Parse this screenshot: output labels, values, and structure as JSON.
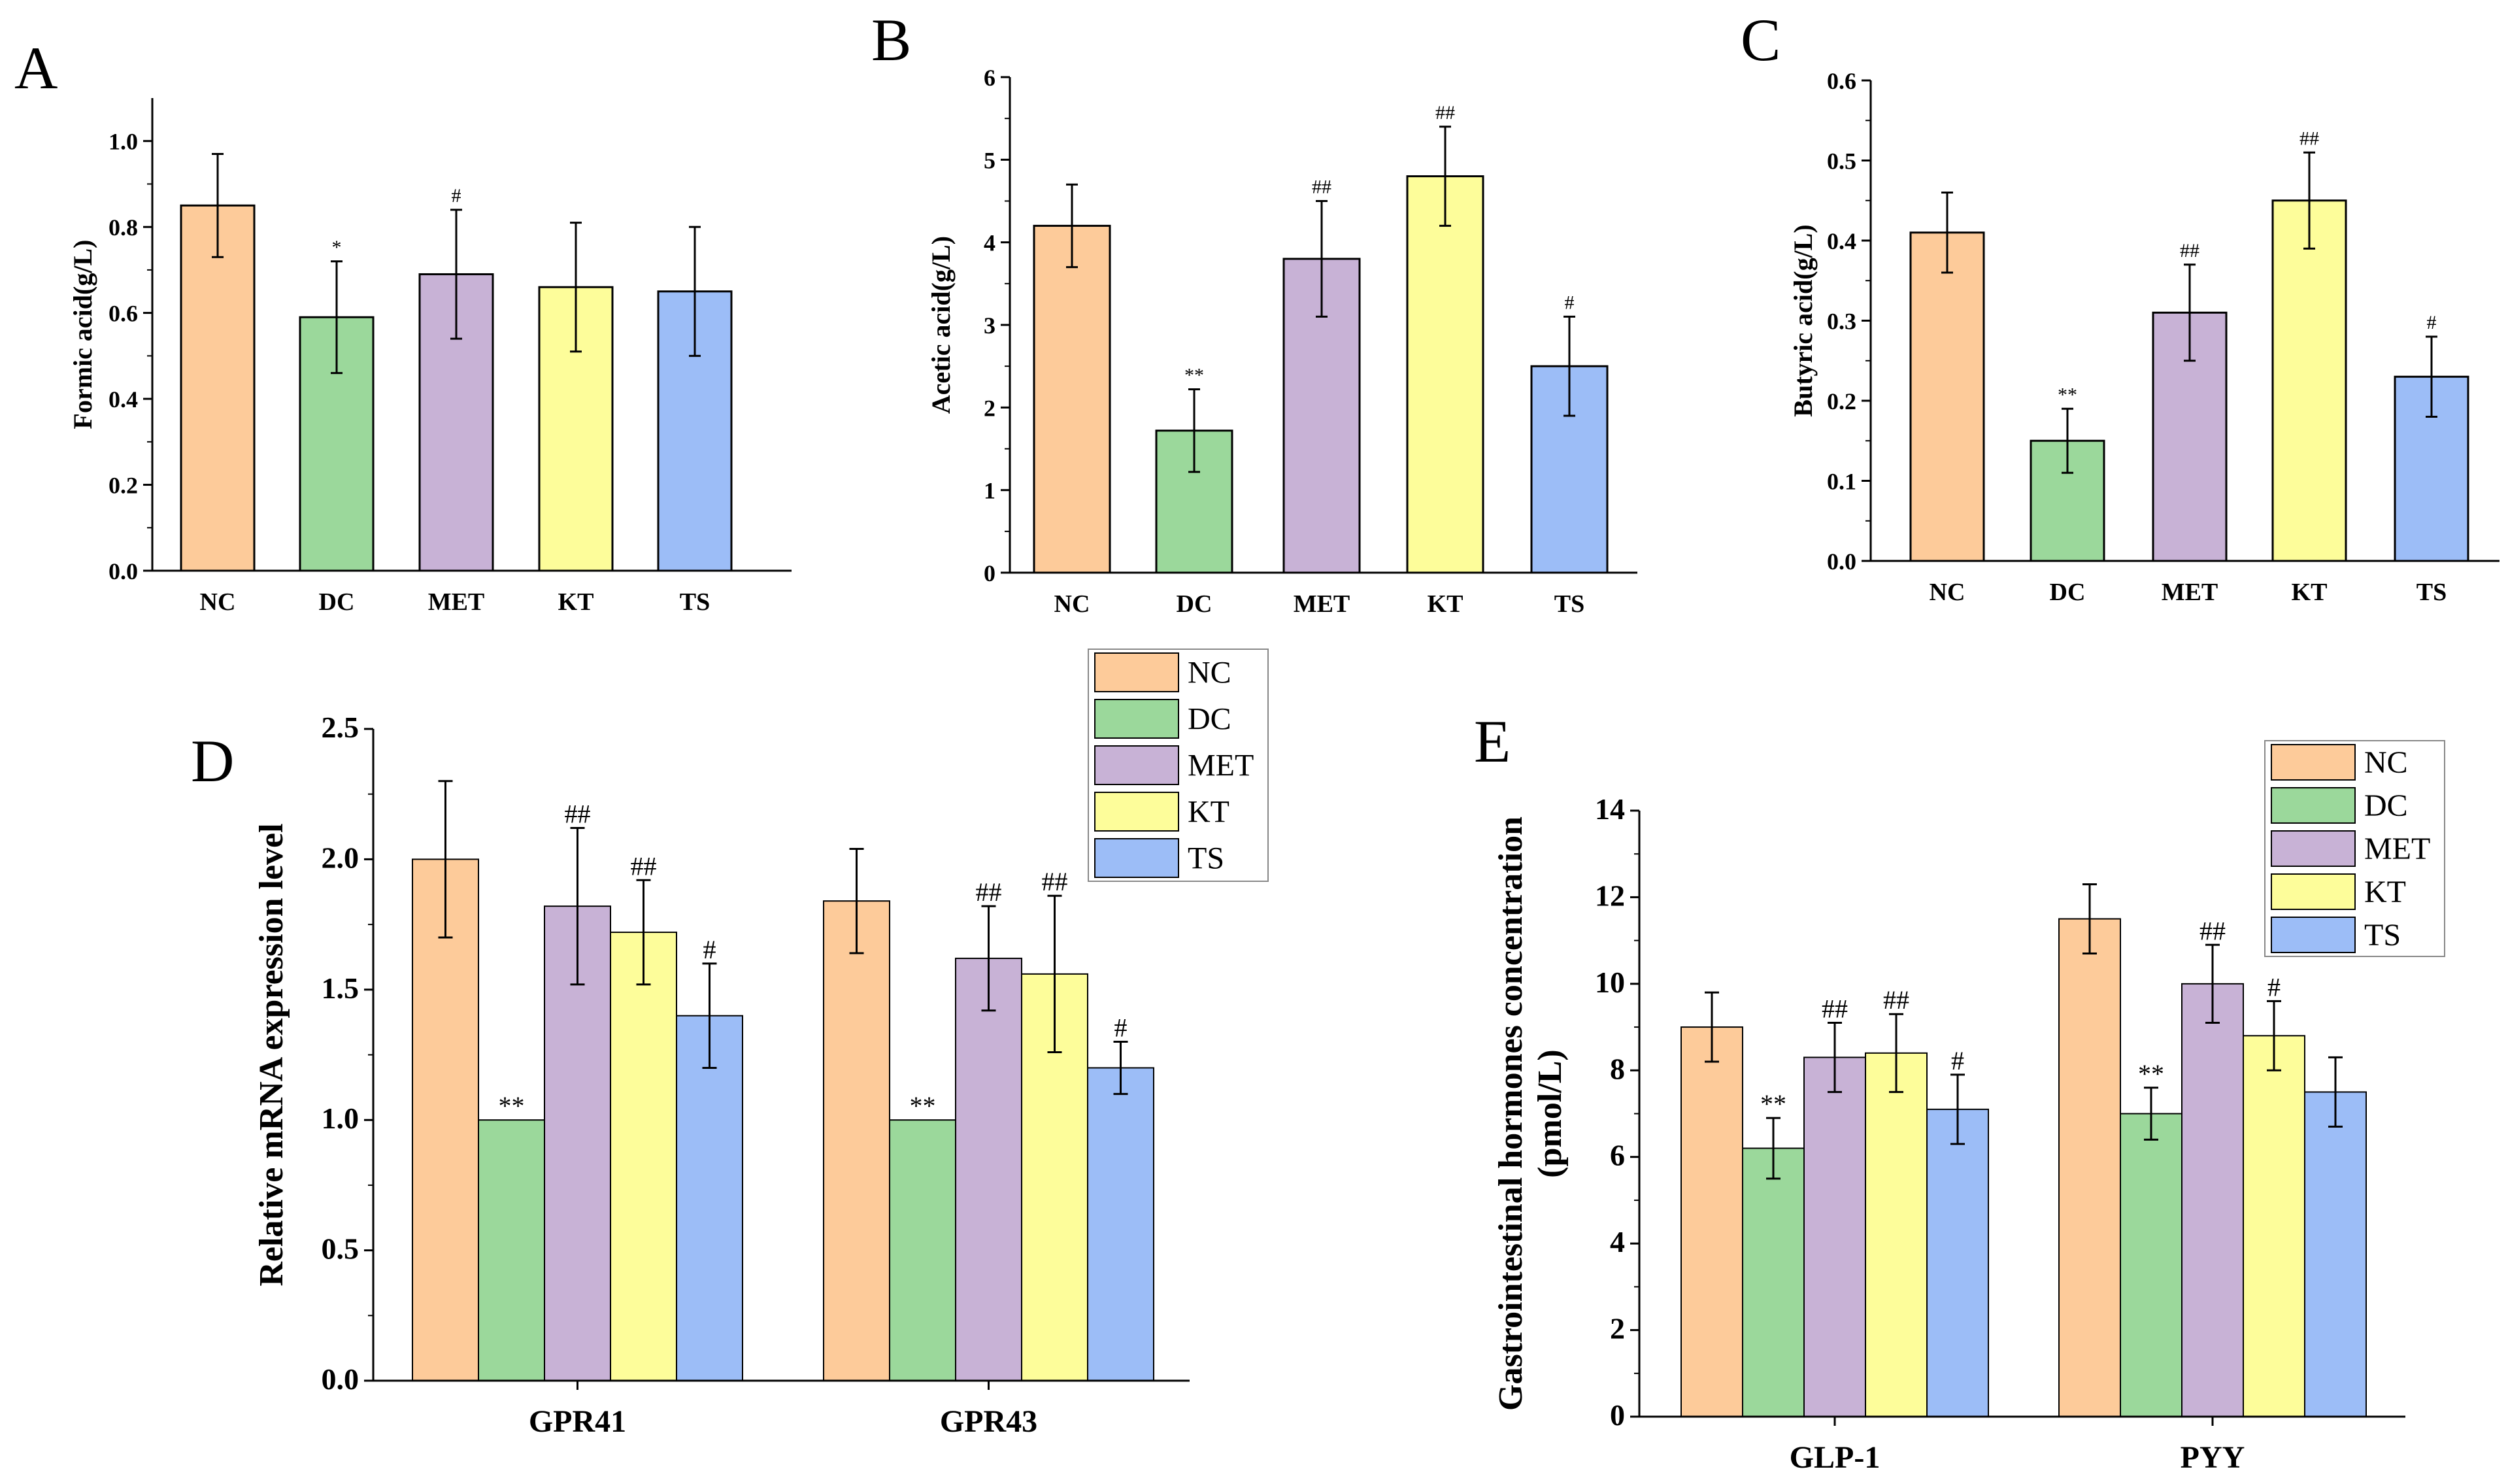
{
  "chart_data": [
    {
      "id": "A",
      "panel_label": "A",
      "type": "bar",
      "ylabel": "Formic acid(g/L)",
      "categories": [
        "NC",
        "DC",
        "MET",
        "KT",
        "TS"
      ],
      "values": [
        0.85,
        0.59,
        0.69,
        0.66,
        0.65
      ],
      "errors": [
        0.12,
        0.13,
        0.15,
        0.15,
        0.15
      ],
      "significance": [
        "",
        "*",
        "#",
        "",
        ""
      ],
      "ylim": [
        0,
        1.1
      ],
      "yticks": [
        "0.0",
        "0.2",
        "0.4",
        "0.6",
        "0.8",
        "1.0"
      ],
      "ytick_values": [
        0,
        0.2,
        0.4,
        0.6,
        0.8,
        1.0
      ]
    },
    {
      "id": "B",
      "panel_label": "B",
      "type": "bar",
      "ylabel": "Acetic acid(g/L)",
      "categories": [
        "NC",
        "DC",
        "MET",
        "KT",
        "TS"
      ],
      "values": [
        4.2,
        1.72,
        3.8,
        4.8,
        2.5
      ],
      "errors": [
        0.5,
        0.5,
        0.7,
        0.6,
        0.6
      ],
      "significance": [
        "",
        "**",
        "##",
        "##",
        "#"
      ],
      "ylim": [
        0,
        6
      ],
      "yticks": [
        "0",
        "1",
        "2",
        "3",
        "4",
        "5",
        "6"
      ],
      "ytick_values": [
        0,
        1,
        2,
        3,
        4,
        5,
        6
      ]
    },
    {
      "id": "C",
      "panel_label": "C",
      "type": "bar",
      "ylabel": "Butyric acid(g/L)",
      "categories": [
        "NC",
        "DC",
        "MET",
        "KT",
        "TS"
      ],
      "values": [
        0.41,
        0.15,
        0.31,
        0.45,
        0.23
      ],
      "errors": [
        0.05,
        0.04,
        0.06,
        0.06,
        0.05
      ],
      "significance": [
        "",
        "**",
        "##",
        "##",
        "#"
      ],
      "ylim": [
        0,
        0.6
      ],
      "yticks": [
        "0.0",
        "0.1",
        "0.2",
        "0.3",
        "0.4",
        "0.5",
        "0.6"
      ],
      "ytick_values": [
        0,
        0.1,
        0.2,
        0.3,
        0.4,
        0.5,
        0.6
      ]
    },
    {
      "id": "D",
      "panel_label": "D",
      "type": "bar",
      "ylabel": "Relative mRNA expression level",
      "categories": [
        "GPR41",
        "GPR43"
      ],
      "series": [
        {
          "name": "NC",
          "values": [
            2.0,
            1.84
          ],
          "errors": [
            0.3,
            0.2
          ],
          "significance": [
            "",
            ""
          ]
        },
        {
          "name": "DC",
          "values": [
            1.0,
            1.0
          ],
          "errors": [
            0,
            0
          ],
          "significance": [
            "**",
            "**"
          ]
        },
        {
          "name": "MET",
          "values": [
            1.82,
            1.62
          ],
          "errors": [
            0.3,
            0.2
          ],
          "significance": [
            "##",
            "##"
          ]
        },
        {
          "name": "KT",
          "values": [
            1.72,
            1.56
          ],
          "errors": [
            0.2,
            0.3
          ],
          "significance": [
            "##",
            "##"
          ]
        },
        {
          "name": "TS",
          "values": [
            1.4,
            1.2
          ],
          "errors": [
            0.2,
            0.1
          ],
          "significance": [
            "#",
            "#"
          ]
        }
      ],
      "ylim": [
        0,
        2.5
      ],
      "yticks": [
        "0.0",
        "0.5",
        "1.0",
        "1.5",
        "2.0",
        "2.5"
      ],
      "ytick_values": [
        0,
        0.5,
        1.0,
        1.5,
        2.0,
        2.5
      ],
      "legend": "top-right"
    },
    {
      "id": "E",
      "panel_label": "E",
      "type": "bar",
      "ylabel": "Gastrointestinal hormones concentration",
      "ylabel2": "(pmol/L)",
      "categories": [
        "GLP-1",
        "PYY"
      ],
      "series": [
        {
          "name": "NC",
          "values": [
            9.0,
            11.5
          ],
          "errors": [
            0.8,
            0.8
          ],
          "significance": [
            "",
            ""
          ]
        },
        {
          "name": "DC",
          "values": [
            6.2,
            7.0
          ],
          "errors": [
            0.7,
            0.6
          ],
          "significance": [
            "**",
            "**"
          ]
        },
        {
          "name": "MET",
          "values": [
            8.3,
            10.0
          ],
          "errors": [
            0.8,
            0.9
          ],
          "significance": [
            "##",
            "##"
          ]
        },
        {
          "name": "KT",
          "values": [
            8.4,
            8.8
          ],
          "errors": [
            0.9,
            0.8
          ],
          "significance": [
            "##",
            "#"
          ]
        },
        {
          "name": "TS",
          "values": [
            7.1,
            7.5
          ],
          "errors": [
            0.8,
            0.8
          ],
          "significance": [
            "#",
            ""
          ]
        }
      ],
      "ylim": [
        0,
        14
      ],
      "yticks": [
        "0",
        "2",
        "4",
        "6",
        "8",
        "10",
        "12",
        "14"
      ],
      "ytick_values": [
        0,
        2,
        4,
        6,
        8,
        10,
        12,
        14
      ],
      "legend": "top-right"
    }
  ],
  "colors": {
    "NC": "#FDCB9A",
    "DC": "#9BD89B",
    "MET": "#C8B2D6",
    "KT": "#FDFD9A",
    "TS": "#9CBDF7"
  }
}
